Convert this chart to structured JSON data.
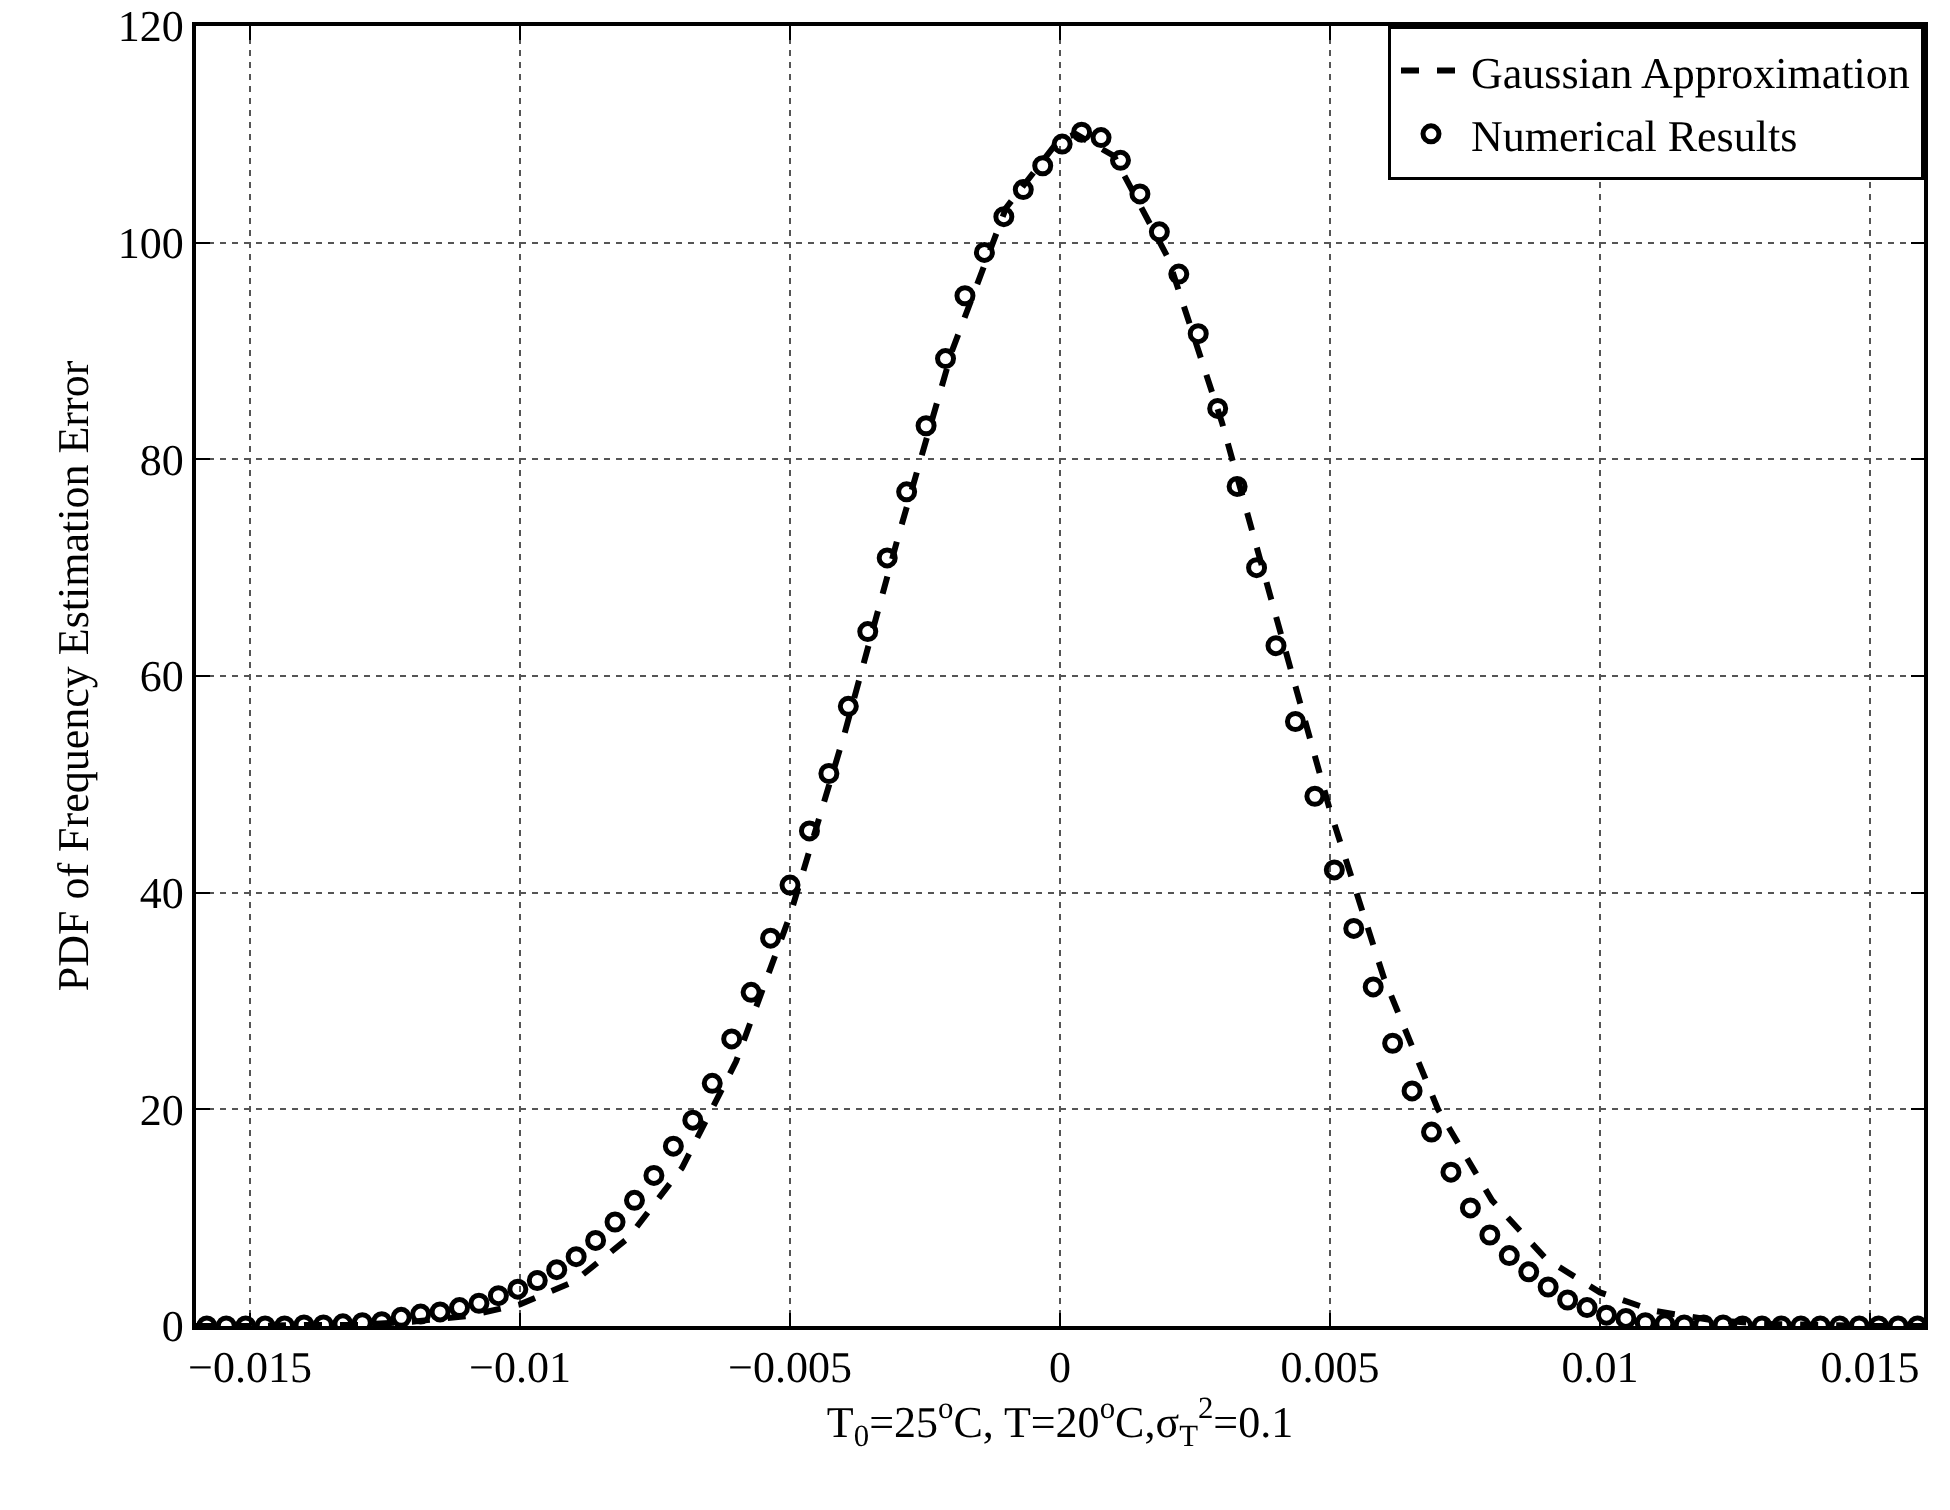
{
  "chart_data": {
    "type": "line",
    "xlabel": "T$_{0}$=25$^{o}$C, T=20$^{o}$C,σ$_{T}$$^{2}$=0.1",
    "ylabel": "PDF of Frequency Estimation Error",
    "xlim": [
      -0.016,
      0.016
    ],
    "xticks": [
      {
        "value": -0.015,
        "label": "−0.015"
      },
      {
        "value": -0.01,
        "label": "−0.01"
      },
      {
        "value": -0.005,
        "label": "−0.005"
      },
      0,
      0.005,
      0.01,
      0.015
    ],
    "ylim": [
      0,
      120
    ],
    "yticks": [
      0,
      20,
      40,
      60,
      80,
      100,
      120
    ],
    "grid": true,
    "legend": "top right",
    "series": [
      {
        "name": "Gaussian Approximation",
        "color": "#000000",
        "marker": "none",
        "line_style": "dashed",
        "x": [
          -0.016,
          -0.015,
          -0.014,
          -0.013,
          -0.012,
          -0.011,
          -0.01,
          -0.009,
          -0.008,
          -0.007,
          -0.006,
          -0.005,
          -0.004,
          -0.003,
          -0.002,
          -0.001,
          0,
          0.0003,
          0.001,
          0.002,
          0.003,
          0.004,
          0.005,
          0.006,
          0.007,
          0.008,
          0.009,
          0.01,
          0.011,
          0.012,
          0.013,
          0.014,
          0.015,
          0.016
        ],
        "values": [
          0,
          0,
          0.1,
          0.1,
          0.4,
          0.9,
          2,
          4.1,
          8.1,
          14.6,
          24.4,
          37.9,
          54.5,
          72.8,
          90,
          103.2,
          109.6,
          110,
          108,
          98.6,
          83.4,
          65.5,
          47.6,
          32.1,
          20,
          11.6,
          6.2,
          3.1,
          1.4,
          0.6,
          0.2,
          0.1,
          0,
          0
        ]
      },
      {
        "name": "Numerical Results",
        "type": "scatter",
        "color": "#000000",
        "marker": "circle",
        "x": [
          -0.0158,
          -0.01544,
          -0.01508,
          -0.01472,
          -0.01436,
          -0.014,
          -0.01364,
          -0.01328,
          -0.01292,
          -0.01256,
          -0.0122,
          -0.01184,
          -0.01148,
          -0.01112,
          -0.01076,
          -0.0104,
          -0.01004,
          -0.00968,
          -0.00932,
          -0.00896,
          -0.0086,
          -0.00824,
          -0.00788,
          -0.00752,
          -0.00716,
          -0.0068,
          -0.00644,
          -0.00608,
          -0.00572,
          -0.00536,
          -0.005,
          -0.00464,
          -0.00428,
          -0.00392,
          -0.00356,
          -0.0032,
          -0.00284,
          -0.00248,
          -0.00212,
          -0.00176,
          -0.0014,
          -0.00104,
          -0.00068,
          -0.00032,
          4e-05,
          0.0004,
          0.00076,
          0.00112,
          0.00148,
          0.00184,
          0.0022,
          0.00256,
          0.00292,
          0.00328,
          0.00364,
          0.004,
          0.00436,
          0.00472,
          0.00508,
          0.00544,
          0.0058,
          0.00616,
          0.00652,
          0.00688,
          0.00724,
          0.0076,
          0.00796,
          0.00832,
          0.00868,
          0.00904,
          0.0094,
          0.00976,
          0.01012,
          0.01048,
          0.01084,
          0.0112,
          0.01156,
          0.01192,
          0.01228,
          0.01264,
          0.013,
          0.01336,
          0.01372,
          0.01408,
          0.01444,
          0.0148,
          0.01516,
          0.01552,
          0.01588
        ],
        "values": [
          0,
          0,
          0,
          0,
          0,
          0.1,
          0.1,
          0.2,
          0.3,
          0.4,
          0.8,
          1.1,
          1.3,
          1.7,
          2.1,
          2.8,
          3.4,
          4.2,
          5.2,
          6.4,
          7.9,
          9.6,
          11.6,
          13.9,
          16.6,
          19,
          22.4,
          26.5,
          30.8,
          35.8,
          40.7,
          45.7,
          51,
          57.2,
          64.1,
          70.9,
          77,
          83.1,
          89.3,
          95.1,
          99.1,
          102.4,
          104.9,
          107.1,
          109.1,
          110.2,
          109.7,
          107.6,
          104.5,
          101,
          97.1,
          91.6,
          84.7,
          77.5,
          70,
          62.8,
          55.8,
          48.9,
          42.1,
          36.7,
          31.3,
          26.1,
          21.7,
          17.9,
          14.2,
          10.9,
          8.4,
          6.5,
          5,
          3.6,
          2.4,
          1.7,
          1,
          0.7,
          0.3,
          0.2,
          0.1,
          0.1,
          0.1,
          0,
          0,
          0,
          0,
          0,
          0,
          0,
          0,
          0,
          0
        ]
      }
    ]
  }
}
